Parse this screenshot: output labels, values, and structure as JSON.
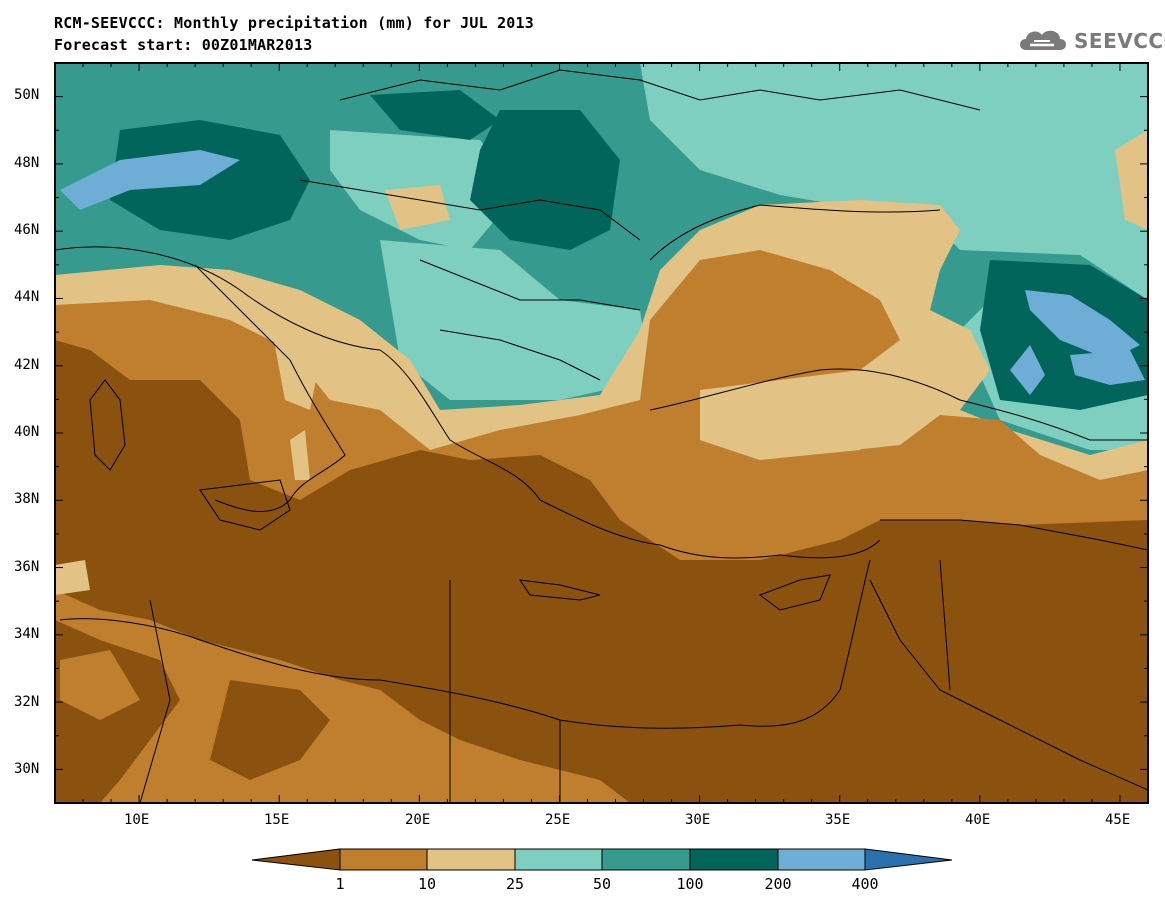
{
  "title": {
    "line1": "RCM-SEEVCCC: Monthly precipitation (mm) for JUL 2013",
    "line2": "Forecast start: 00Z01MAR2013"
  },
  "logo": {
    "text": "SEEVCCC",
    "icon": "cloud-logo-icon"
  },
  "map": {
    "lon_range": [
      7,
      46
    ],
    "lat_range": [
      29,
      51
    ],
    "lat_ticks": [
      "50N",
      "48N",
      "46N",
      "44N",
      "42N",
      "40N",
      "38N",
      "36N",
      "34N",
      "32N",
      "30N"
    ],
    "lon_ticks": [
      "10E",
      "15E",
      "20E",
      "25E",
      "30E",
      "35E",
      "40E",
      "45E"
    ]
  },
  "colorbar": {
    "labels": [
      "1",
      "10",
      "25",
      "50",
      "100",
      "200",
      "400"
    ],
    "colors": [
      "#8b520f",
      "#bf7f2e",
      "#e2c285",
      "#7fcfc0",
      "#379a8e",
      "#01655c",
      "#6eaed6",
      "#2b71ad"
    ]
  }
}
